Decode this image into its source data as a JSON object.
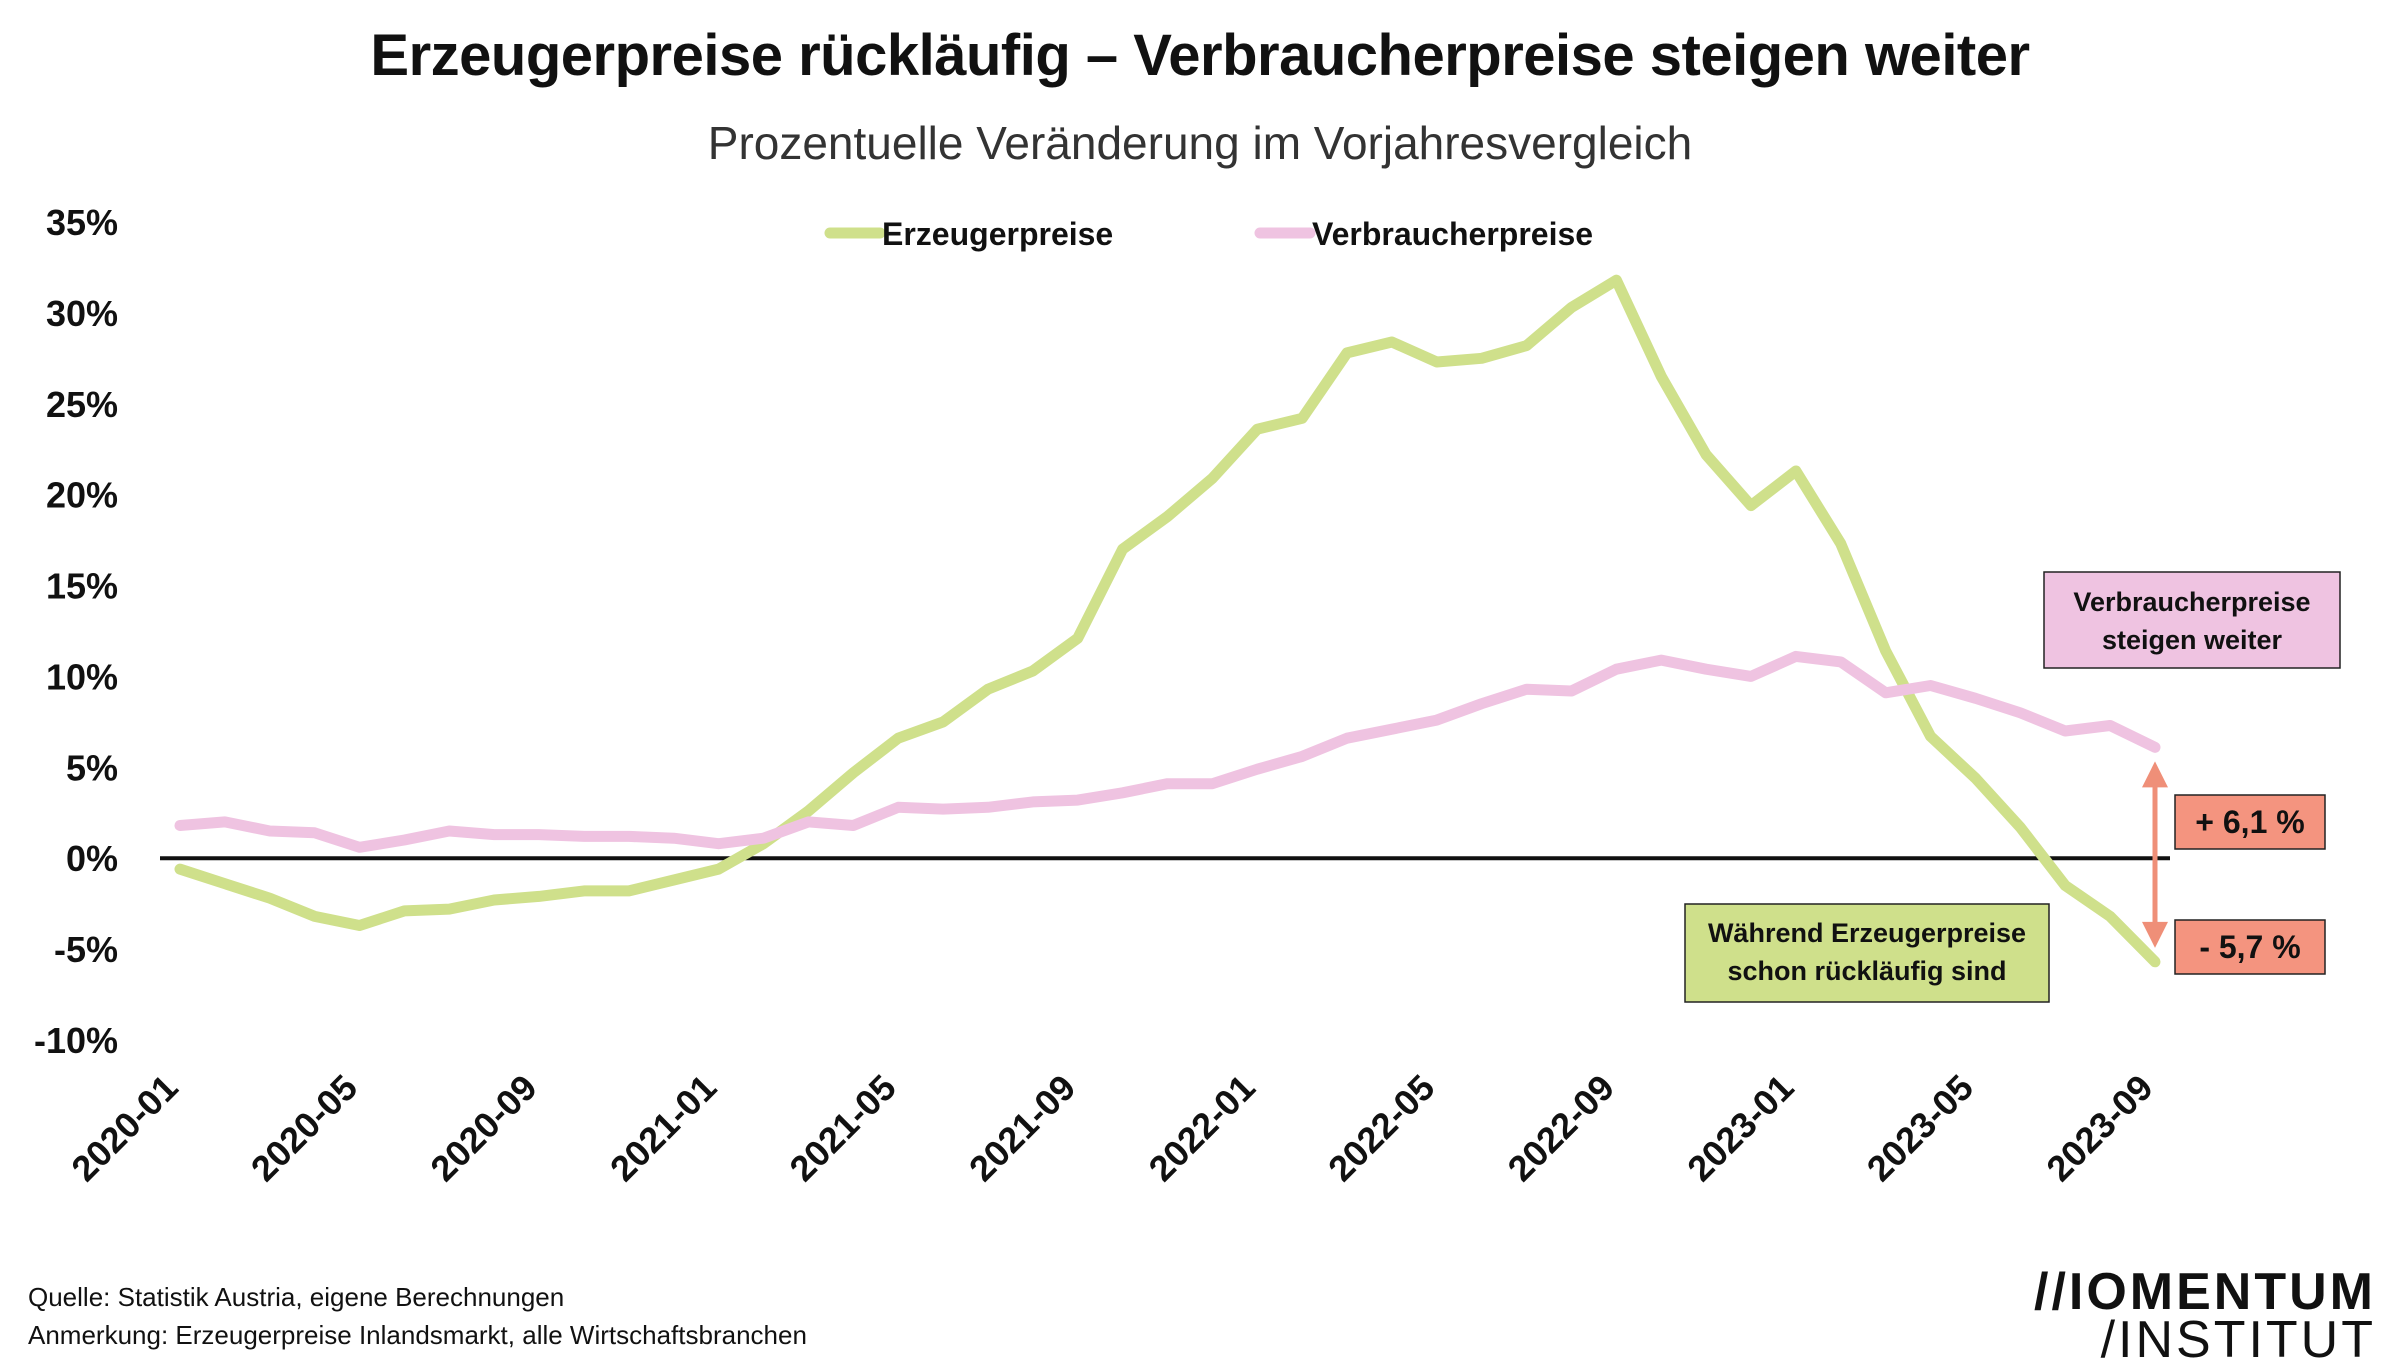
{
  "title": "Erzeugerpreise rückläufig – Verbraucherpreise steigen weiter",
  "subtitle": "Prozentuelle Veränderung im Vorjahresvergleich",
  "colors": {
    "erzeuger": "#cfe08b",
    "verbraucher": "#efc3e1",
    "arrow": "#ef8f78",
    "value_box": "#f4947f",
    "zero_line": "#111111"
  },
  "chart_data": {
    "type": "line",
    "ylim": [
      -10,
      35
    ],
    "yticks": [
      -10,
      -5,
      0,
      5,
      10,
      15,
      20,
      25,
      30,
      35
    ],
    "ytick_labels": [
      "-10%",
      "-5%",
      "0%",
      "5%",
      "10%",
      "15%",
      "20%",
      "25%",
      "30%",
      "35%"
    ],
    "x": [
      "2020-01",
      "2020-02",
      "2020-03",
      "2020-04",
      "2020-05",
      "2020-06",
      "2020-07",
      "2020-08",
      "2020-09",
      "2020-10",
      "2020-11",
      "2020-12",
      "2021-01",
      "2021-02",
      "2021-03",
      "2021-04",
      "2021-05",
      "2021-06",
      "2021-07",
      "2021-08",
      "2021-09",
      "2021-10",
      "2021-11",
      "2021-12",
      "2022-01",
      "2022-02",
      "2022-03",
      "2022-04",
      "2022-05",
      "2022-06",
      "2022-07",
      "2022-08",
      "2022-09",
      "2022-10",
      "2022-11",
      "2022-12",
      "2023-01",
      "2023-02",
      "2023-03",
      "2023-04",
      "2023-05",
      "2023-06",
      "2023-07",
      "2023-08",
      "2023-09"
    ],
    "xtick_labels": [
      "2020-01",
      "2020-05",
      "2020-09",
      "2021-01",
      "2021-05",
      "2021-09",
      "2022-01",
      "2022-05",
      "2022-09",
      "2023-01",
      "2023-05",
      "2023-09"
    ],
    "series": [
      {
        "name": "Erzeugerpreise",
        "values": [
          -0.6,
          -1.4,
          -2.2,
          -3.2,
          -3.7,
          -2.9,
          -2.8,
          -2.3,
          -2.1,
          -1.8,
          -1.8,
          -1.2,
          -0.6,
          0.8,
          2.6,
          4.7,
          6.6,
          7.5,
          9.3,
          10.3,
          12.1,
          17.0,
          18.8,
          20.9,
          23.6,
          24.2,
          27.8,
          28.4,
          27.3,
          27.5,
          28.2,
          30.3,
          31.8,
          26.5,
          22.2,
          19.4,
          21.3,
          17.3,
          11.4,
          6.7,
          4.4,
          1.7,
          -1.5,
          -3.2,
          -5.7
        ]
      },
      {
        "name": "Verbraucherpreise",
        "values": [
          1.8,
          2.0,
          1.5,
          1.4,
          0.6,
          1.0,
          1.5,
          1.3,
          1.3,
          1.2,
          1.2,
          1.1,
          0.8,
          1.1,
          2.0,
          1.8,
          2.8,
          2.7,
          2.8,
          3.1,
          3.2,
          3.6,
          4.1,
          4.1,
          4.9,
          5.6,
          6.6,
          7.1,
          7.6,
          8.5,
          9.3,
          9.2,
          10.4,
          10.9,
          10.4,
          10.0,
          11.1,
          10.8,
          9.1,
          9.5,
          8.8,
          8.0,
          7.0,
          7.3,
          6.1
        ]
      }
    ],
    "legend": [
      "Erzeugerpreise",
      "Verbraucherpreise"
    ],
    "annotations": {
      "verbraucher_callout": [
        "Verbraucherpreise",
        "steigen weiter"
      ],
      "erzeuger_callout": [
        "Während Erzeugerpreise",
        "schon rückläufig sind"
      ],
      "verbraucher_value": "+ 6,1 %",
      "erzeuger_value": "- 5,7 %"
    }
  },
  "footer": {
    "source": "Quelle: Statistik Austria, eigene Berechnungen",
    "note": "Anmerkung: Erzeugerpreise Inlandsmarkt, alle Wirtschaftsbranchen"
  },
  "logo": {
    "line1": "//IOMENTUM",
    "line2": "/INSTITUT"
  }
}
